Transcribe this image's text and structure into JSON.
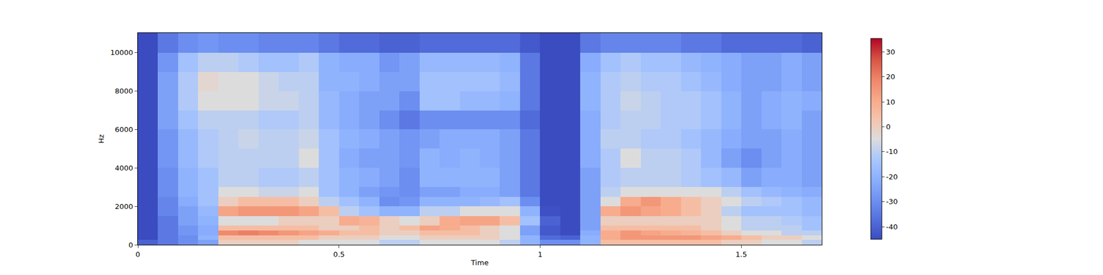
{
  "chart_data": {
    "type": "heatmap",
    "x_label": "Time",
    "y_label": "Hz",
    "xlim": [
      0,
      1.7
    ],
    "ylim": [
      0,
      11025
    ],
    "xticks": [
      0,
      0.5,
      1,
      1.5
    ],
    "yticks": [
      0,
      2000,
      4000,
      6000,
      8000,
      10000
    ],
    "colorbar_range": [
      -45,
      35.3
    ],
    "colorbar_ticks": [
      -40,
      -30,
      -20,
      -10,
      0,
      10,
      20,
      30
    ],
    "x_edges": [
      0,
      0.05,
      0.1,
      0.15,
      0.2,
      0.25,
      0.3,
      0.35,
      0.4,
      0.45,
      0.5,
      0.55,
      0.6,
      0.65,
      0.7,
      0.75,
      0.8,
      0.85,
      0.9,
      0.95,
      1.0,
      1.05,
      1.1,
      1.15,
      1.2,
      1.25,
      1.3,
      1.35,
      1.4,
      1.45,
      1.5,
      1.55,
      1.6,
      1.65,
      1.7
    ],
    "y_edges": [
      0,
      250,
      500,
      750,
      1000,
      1500,
      2000,
      2500,
      3000,
      4000,
      5000,
      6000,
      7000,
      8000,
      9000,
      10000,
      11025
    ],
    "cells": [
      [
        -40,
        -45,
        -45,
        -45,
        -45,
        -45,
        -45,
        -45,
        -45,
        -45,
        -45,
        -45,
        -45,
        -45,
        -45,
        -45
      ],
      [
        -35,
        -35,
        -35,
        -35,
        -35,
        -32,
        -32,
        -30,
        -30,
        -28,
        -28,
        -25,
        -25,
        -25,
        -28,
        -35
      ],
      [
        -30,
        -30,
        -28,
        -28,
        -25,
        -25,
        -22,
        -20,
        -20,
        -18,
        -18,
        -15,
        -12,
        -12,
        -15,
        -30
      ],
      [
        -25,
        -20,
        -22,
        -22,
        -20,
        -18,
        -15,
        -15,
        -15,
        -12,
        -12,
        -10,
        -5,
        -3,
        -10,
        -28
      ],
      [
        0,
        5,
        18,
        5,
        -5,
        12,
        0,
        -5,
        -10,
        -10,
        -10,
        -10,
        -5,
        -5,
        -10,
        -30
      ],
      [
        0,
        5,
        20,
        5,
        -5,
        15,
        5,
        -5,
        -10,
        -10,
        -8,
        -10,
        -5,
        -5,
        -12,
        -30
      ],
      [
        0,
        5,
        18,
        5,
        -5,
        15,
        5,
        -8,
        -12,
        -10,
        -10,
        -12,
        -8,
        -8,
        -15,
        -32
      ],
      [
        0,
        5,
        15,
        5,
        0,
        15,
        5,
        -8,
        -12,
        -10,
        -10,
        -12,
        -8,
        -10,
        -15,
        -32
      ],
      [
        -5,
        5,
        12,
        5,
        0,
        12,
        0,
        -5,
        -10,
        -5,
        -8,
        -10,
        -10,
        -10,
        -12,
        -32
      ],
      [
        -5,
        0,
        10,
        0,
        0,
        5,
        -10,
        -15,
        -15,
        -15,
        -15,
        -18,
        -18,
        -20,
        -20,
        -35
      ],
      [
        -5,
        0,
        5,
        0,
        10,
        -10,
        -15,
        -20,
        -20,
        -22,
        -20,
        -22,
        -22,
        -20,
        -22,
        -38
      ],
      [
        -5,
        0,
        5,
        5,
        8,
        -15,
        -20,
        -25,
        -22,
        -25,
        -22,
        -25,
        -25,
        -22,
        -22,
        -38
      ],
      [
        -10,
        -5,
        0,
        0,
        0,
        -20,
        -30,
        -28,
        -25,
        -25,
        -25,
        -30,
        -25,
        -25,
        -28,
        -40
      ],
      [
        -10,
        -5,
        0,
        5,
        -5,
        -20,
        -28,
        -30,
        -30,
        -28,
        -28,
        -35,
        -30,
        -25,
        -25,
        -40
      ],
      [
        -5,
        0,
        5,
        12,
        0,
        -10,
        -20,
        -25,
        -20,
        -20,
        -25,
        -30,
        -15,
        -15,
        -18,
        -38
      ],
      [
        -5,
        0,
        5,
        10,
        10,
        -10,
        -20,
        -25,
        -20,
        -22,
        -22,
        -30,
        -15,
        -15,
        -18,
        -38
      ],
      [
        -5,
        0,
        5,
        5,
        12,
        -5,
        -20,
        -22,
        -20,
        -20,
        -22,
        -30,
        -18,
        -15,
        -18,
        -38
      ],
      [
        -5,
        0,
        0,
        0,
        12,
        -5,
        -18,
        -22,
        -20,
        -22,
        -22,
        -30,
        -18,
        -15,
        -18,
        -38
      ],
      [
        -10,
        -5,
        -5,
        -5,
        5,
        -5,
        -15,
        -25,
        -25,
        -25,
        -25,
        -30,
        -20,
        -18,
        -20,
        -38
      ],
      [
        -20,
        -20,
        -25,
        -25,
        -15,
        -20,
        -30,
        -35,
        -35,
        -35,
        -35,
        -38,
        -35,
        -35,
        -35,
        -42
      ],
      [
        -30,
        -38,
        -42,
        -42,
        -40,
        -44,
        -45,
        -45,
        -45,
        -45,
        -45,
        -45,
        -45,
        -45,
        -45,
        -45
      ],
      [
        -30,
        -40,
        -45,
        -45,
        -45,
        -45,
        -45,
        -45,
        -45,
        -45,
        -45,
        -45,
        -45,
        -45,
        -45,
        -45
      ],
      [
        -20,
        -20,
        -22,
        -25,
        -25,
        -25,
        -25,
        -25,
        -25,
        -22,
        -22,
        -22,
        -20,
        -20,
        -22,
        -35
      ],
      [
        5,
        10,
        10,
        5,
        0,
        10,
        -5,
        -10,
        -12,
        -12,
        -10,
        -12,
        -12,
        -12,
        -15,
        -32
      ],
      [
        5,
        15,
        15,
        5,
        0,
        15,
        10,
        -5,
        -10,
        -5,
        -10,
        -10,
        -8,
        -10,
        -12,
        -32
      ],
      [
        5,
        15,
        12,
        5,
        0,
        12,
        15,
        -5,
        -10,
        -10,
        -12,
        -10,
        -10,
        -12,
        -15,
        -32
      ],
      [
        5,
        15,
        10,
        5,
        0,
        10,
        10,
        -5,
        -10,
        -10,
        -12,
        -12,
        -12,
        -12,
        -15,
        -32
      ],
      [
        5,
        15,
        8,
        5,
        0,
        5,
        5,
        -5,
        -12,
        -12,
        -15,
        -12,
        -12,
        -15,
        -18,
        -35
      ],
      [
        5,
        12,
        5,
        0,
        0,
        0,
        0,
        -5,
        -15,
        -18,
        -18,
        -15,
        -15,
        -18,
        -20,
        -35
      ],
      [
        0,
        10,
        0,
        -5,
        -5,
        -10,
        -5,
        -10,
        -18,
        -25,
        -22,
        -20,
        -20,
        -22,
        -22,
        -38
      ],
      [
        0,
        5,
        -5,
        -10,
        -10,
        -15,
        -10,
        -15,
        -25,
        -30,
        -25,
        -25,
        -25,
        -25,
        -25,
        -38
      ],
      [
        -5,
        0,
        -5,
        -10,
        -10,
        -15,
        -12,
        -18,
        -22,
        -25,
        -25,
        -22,
        -22,
        -25,
        -25,
        -38
      ],
      [
        -5,
        0,
        -10,
        -10,
        -12,
        -15,
        -15,
        -20,
        -22,
        -22,
        -22,
        -20,
        -20,
        -22,
        -22,
        -38
      ],
      [
        -10,
        -5,
        -10,
        -15,
        -15,
        -18,
        -18,
        -22,
        -25,
        -25,
        -25,
        -25,
        -22,
        -25,
        -25,
        -40
      ]
    ]
  }
}
